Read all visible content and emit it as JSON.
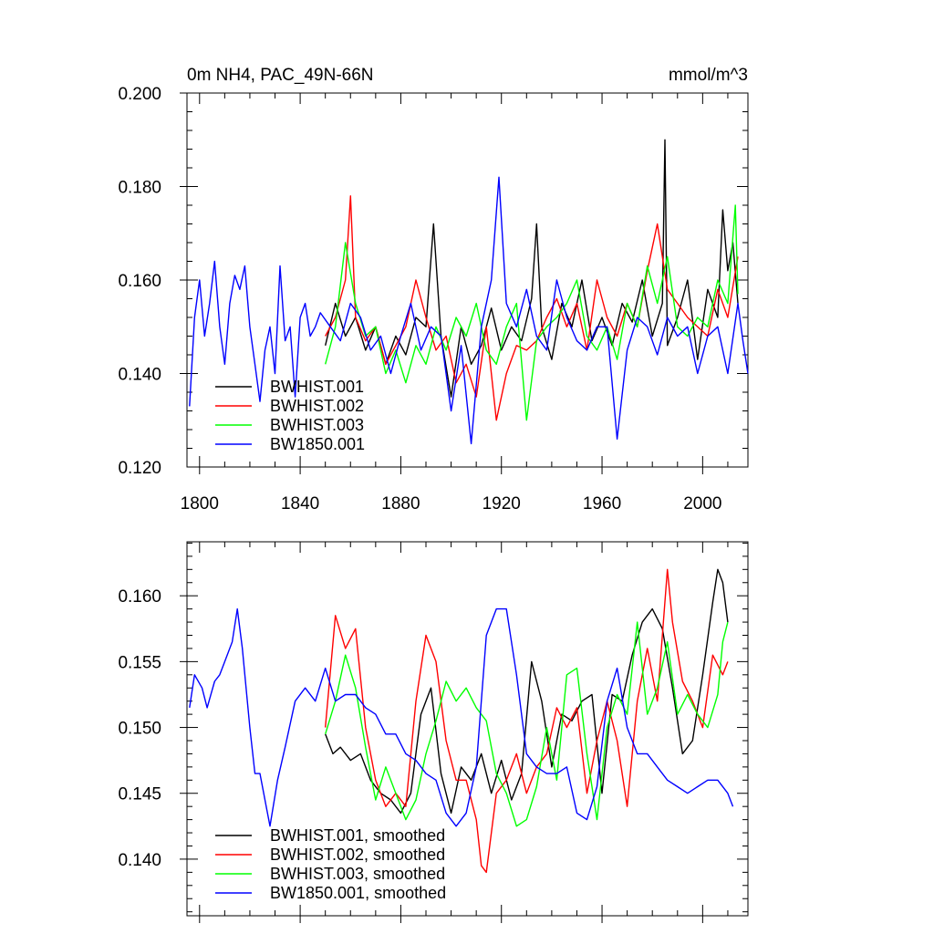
{
  "chart_data": [
    {
      "type": "line",
      "title": "0m NH4, PAC_49N-66N",
      "units": "mmol/m^3",
      "xlim": [
        1795,
        2018
      ],
      "ylim": [
        0.12,
        0.2
      ],
      "x_ticks": [
        "1800",
        "1840",
        "1880",
        "1920",
        "1960",
        "2000"
      ],
      "y_ticks": [
        "0.120",
        "0.140",
        "0.160",
        "0.180",
        "0.200"
      ],
      "grid": false,
      "legend": "lower-left",
      "series": [
        {
          "name": "BWHIST.001",
          "color": "#000000",
          "x": [
            1850,
            1854,
            1858,
            1862,
            1866,
            1870,
            1874,
            1878,
            1882,
            1886,
            1890,
            1893,
            1896,
            1900,
            1904,
            1908,
            1912,
            1916,
            1920,
            1924,
            1928,
            1932,
            1934,
            1936,
            1940,
            1944,
            1948,
            1952,
            1956,
            1960,
            1964,
            1968,
            1972,
            1976,
            1980,
            1984,
            1985,
            1986,
            1990,
            1994,
            1998,
            2002,
            2006,
            2008,
            2010,
            2012,
            2014
          ],
          "y": [
            0.146,
            0.155,
            0.148,
            0.152,
            0.145,
            0.15,
            0.142,
            0.148,
            0.144,
            0.152,
            0.15,
            0.172,
            0.148,
            0.135,
            0.15,
            0.142,
            0.146,
            0.154,
            0.145,
            0.15,
            0.147,
            0.156,
            0.172,
            0.15,
            0.143,
            0.155,
            0.15,
            0.16,
            0.147,
            0.152,
            0.146,
            0.155,
            0.151,
            0.16,
            0.148,
            0.155,
            0.19,
            0.146,
            0.152,
            0.16,
            0.143,
            0.158,
            0.152,
            0.175,
            0.162,
            0.168,
            0.155
          ]
        },
        {
          "name": "BWHIST.002",
          "color": "#ff0000",
          "x": [
            1850,
            1854,
            1858,
            1860,
            1862,
            1866,
            1870,
            1874,
            1878,
            1882,
            1886,
            1890,
            1894,
            1898,
            1902,
            1906,
            1910,
            1914,
            1918,
            1922,
            1926,
            1930,
            1934,
            1938,
            1942,
            1946,
            1950,
            1954,
            1958,
            1962,
            1966,
            1970,
            1974,
            1978,
            1982,
            1986,
            1990,
            1994,
            1998,
            2002,
            2006,
            2010,
            2014
          ],
          "y": [
            0.148,
            0.152,
            0.16,
            0.178,
            0.152,
            0.147,
            0.15,
            0.142,
            0.146,
            0.15,
            0.16,
            0.152,
            0.145,
            0.148,
            0.138,
            0.142,
            0.135,
            0.15,
            0.13,
            0.14,
            0.146,
            0.145,
            0.147,
            0.152,
            0.156,
            0.15,
            0.155,
            0.145,
            0.16,
            0.152,
            0.148,
            0.155,
            0.15,
            0.162,
            0.172,
            0.158,
            0.155,
            0.152,
            0.15,
            0.148,
            0.158,
            0.152,
            0.165
          ]
        },
        {
          "name": "BWHIST.003",
          "color": "#00ff00",
          "x": [
            1850,
            1854,
            1858,
            1862,
            1866,
            1870,
            1874,
            1878,
            1882,
            1886,
            1890,
            1894,
            1898,
            1902,
            1906,
            1910,
            1914,
            1918,
            1922,
            1926,
            1930,
            1934,
            1938,
            1942,
            1946,
            1950,
            1954,
            1958,
            1962,
            1966,
            1970,
            1974,
            1978,
            1982,
            1986,
            1990,
            1994,
            1998,
            2002,
            2006,
            2010,
            2013,
            2014
          ],
          "y": [
            0.142,
            0.15,
            0.168,
            0.155,
            0.148,
            0.15,
            0.14,
            0.145,
            0.138,
            0.146,
            0.142,
            0.15,
            0.145,
            0.152,
            0.148,
            0.155,
            0.145,
            0.142,
            0.15,
            0.155,
            0.13,
            0.147,
            0.15,
            0.152,
            0.155,
            0.16,
            0.148,
            0.145,
            0.15,
            0.143,
            0.155,
            0.15,
            0.163,
            0.155,
            0.165,
            0.15,
            0.148,
            0.152,
            0.15,
            0.16,
            0.155,
            0.176,
            0.157
          ]
        },
        {
          "name": "BW1850.001",
          "color": "#0000ff",
          "x": [
            1796,
            1798,
            1800,
            1802,
            1804,
            1806,
            1808,
            1810,
            1812,
            1814,
            1816,
            1818,
            1820,
            1822,
            1824,
            1826,
            1828,
            1830,
            1832,
            1834,
            1836,
            1838,
            1840,
            1842,
            1844,
            1846,
            1848,
            1852,
            1856,
            1860,
            1864,
            1868,
            1872,
            1876,
            1880,
            1884,
            1888,
            1892,
            1896,
            1900,
            1904,
            1908,
            1912,
            1916,
            1919,
            1922,
            1926,
            1930,
            1934,
            1938,
            1942,
            1946,
            1950,
            1954,
            1958,
            1962,
            1966,
            1970,
            1974,
            1978,
            1982,
            1986,
            1990,
            1994,
            1998,
            2002,
            2006,
            2010,
            2014,
            2016,
            2018
          ],
          "y": [
            0.133,
            0.152,
            0.16,
            0.148,
            0.155,
            0.164,
            0.15,
            0.142,
            0.155,
            0.161,
            0.158,
            0.163,
            0.15,
            0.142,
            0.134,
            0.145,
            0.15,
            0.14,
            0.163,
            0.147,
            0.15,
            0.135,
            0.152,
            0.155,
            0.148,
            0.15,
            0.153,
            0.15,
            0.147,
            0.155,
            0.152,
            0.145,
            0.148,
            0.14,
            0.148,
            0.155,
            0.145,
            0.15,
            0.148,
            0.132,
            0.146,
            0.125,
            0.15,
            0.16,
            0.182,
            0.155,
            0.15,
            0.158,
            0.148,
            0.145,
            0.16,
            0.152,
            0.147,
            0.145,
            0.15,
            0.15,
            0.126,
            0.145,
            0.152,
            0.15,
            0.144,
            0.152,
            0.148,
            0.15,
            0.14,
            0.148,
            0.15,
            0.14,
            0.155,
            0.147,
            0.14
          ]
        }
      ]
    },
    {
      "type": "line",
      "title": "",
      "xlim": [
        1795,
        2018
      ],
      "ylim": [
        0.1357,
        0.1641
      ],
      "y_ticks": [
        "0.140",
        "0.145",
        "0.150",
        "0.155",
        "0.160"
      ],
      "grid": false,
      "legend": "lower-left",
      "series": [
        {
          "name": "BWHIST.001, smoothed",
          "color": "#000000",
          "x": [
            1850,
            1853,
            1856,
            1860,
            1864,
            1868,
            1872,
            1876,
            1880,
            1884,
            1888,
            1892,
            1896,
            1900,
            1904,
            1908,
            1912,
            1916,
            1920,
            1924,
            1928,
            1932,
            1936,
            1940,
            1944,
            1948,
            1952,
            1956,
            1960,
            1964,
            1968,
            1972,
            1976,
            1980,
            1984,
            1988,
            1992,
            1996,
            2000,
            2004,
            2006,
            2008,
            2010
          ],
          "y": [
            0.1495,
            0.148,
            0.1485,
            0.1475,
            0.148,
            0.146,
            0.145,
            0.1445,
            0.1435,
            0.145,
            0.151,
            0.153,
            0.1465,
            0.1435,
            0.147,
            0.146,
            0.148,
            0.145,
            0.1475,
            0.1445,
            0.1465,
            0.155,
            0.152,
            0.147,
            0.151,
            0.1505,
            0.152,
            0.1525,
            0.145,
            0.1525,
            0.152,
            0.1555,
            0.158,
            0.159,
            0.1575,
            0.153,
            0.148,
            0.149,
            0.154,
            0.1595,
            0.162,
            0.161,
            0.158
          ]
        },
        {
          "name": "BWHIST.002, smoothed",
          "color": "#ff0000",
          "x": [
            1850,
            1854,
            1858,
            1862,
            1866,
            1870,
            1874,
            1878,
            1882,
            1886,
            1890,
            1894,
            1898,
            1902,
            1906,
            1910,
            1912,
            1914,
            1918,
            1922,
            1926,
            1930,
            1934,
            1938,
            1942,
            1946,
            1950,
            1954,
            1958,
            1962,
            1966,
            1970,
            1974,
            1978,
            1982,
            1986,
            1988,
            1992,
            1996,
            2000,
            2004,
            2008,
            2010
          ],
          "y": [
            0.15,
            0.1585,
            0.156,
            0.1575,
            0.15,
            0.146,
            0.144,
            0.145,
            0.144,
            0.152,
            0.157,
            0.155,
            0.149,
            0.146,
            0.146,
            0.143,
            0.1395,
            0.139,
            0.145,
            0.146,
            0.148,
            0.145,
            0.147,
            0.148,
            0.1515,
            0.15,
            0.1515,
            0.145,
            0.149,
            0.152,
            0.149,
            0.144,
            0.152,
            0.156,
            0.152,
            0.162,
            0.158,
            0.1535,
            0.152,
            0.15,
            0.1555,
            0.154,
            0.155
          ]
        },
        {
          "name": "BWHIST.003, smoothed",
          "color": "#00ff00",
          "x": [
            1850,
            1854,
            1858,
            1862,
            1866,
            1870,
            1874,
            1878,
            1882,
            1886,
            1890,
            1894,
            1898,
            1902,
            1906,
            1910,
            1914,
            1918,
            1922,
            1926,
            1930,
            1934,
            1938,
            1942,
            1946,
            1950,
            1954,
            1958,
            1962,
            1966,
            1970,
            1974,
            1978,
            1982,
            1986,
            1990,
            1994,
            1998,
            2002,
            2006,
            2008,
            2010
          ],
          "y": [
            0.1495,
            0.152,
            0.1555,
            0.153,
            0.1485,
            0.1445,
            0.147,
            0.145,
            0.143,
            0.1445,
            0.148,
            0.1505,
            0.1535,
            0.152,
            0.153,
            0.1515,
            0.1505,
            0.1465,
            0.145,
            0.1425,
            0.143,
            0.1455,
            0.15,
            0.146,
            0.154,
            0.1545,
            0.148,
            0.143,
            0.15,
            0.1525,
            0.151,
            0.158,
            0.151,
            0.153,
            0.1565,
            0.151,
            0.1525,
            0.151,
            0.15,
            0.1525,
            0.1565,
            0.158
          ]
        },
        {
          "name": "BW1850.001, smoothed",
          "color": "#0000ff",
          "x": [
            1796,
            1798,
            1801,
            1803,
            1806,
            1808,
            1810,
            1813,
            1815,
            1817,
            1820,
            1822,
            1824,
            1826,
            1828,
            1831,
            1834,
            1838,
            1842,
            1846,
            1850,
            1854,
            1858,
            1862,
            1866,
            1870,
            1874,
            1878,
            1882,
            1886,
            1890,
            1894,
            1898,
            1902,
            1906,
            1910,
            1914,
            1918,
            1922,
            1926,
            1930,
            1934,
            1938,
            1942,
            1946,
            1950,
            1954,
            1958,
            1962,
            1966,
            1970,
            1974,
            1978,
            1982,
            1986,
            1990,
            1994,
            1998,
            2002,
            2006,
            2010,
            2012
          ],
          "y": [
            0.1515,
            0.154,
            0.153,
            0.1515,
            0.1535,
            0.154,
            0.155,
            0.1565,
            0.159,
            0.156,
            0.15,
            0.1465,
            0.1465,
            0.1445,
            0.1425,
            0.146,
            0.1485,
            0.152,
            0.153,
            0.152,
            0.1545,
            0.152,
            0.1525,
            0.1525,
            0.1515,
            0.151,
            0.1495,
            0.1495,
            0.148,
            0.1475,
            0.1465,
            0.146,
            0.1435,
            0.1425,
            0.1435,
            0.147,
            0.157,
            0.159,
            0.159,
            0.154,
            0.148,
            0.147,
            0.1465,
            0.1465,
            0.147,
            0.1435,
            0.143,
            0.1455,
            0.152,
            0.1545,
            0.15,
            0.148,
            0.148,
            0.147,
            0.146,
            0.1455,
            0.145,
            0.1455,
            0.146,
            0.146,
            0.145,
            0.144
          ]
        }
      ]
    }
  ]
}
